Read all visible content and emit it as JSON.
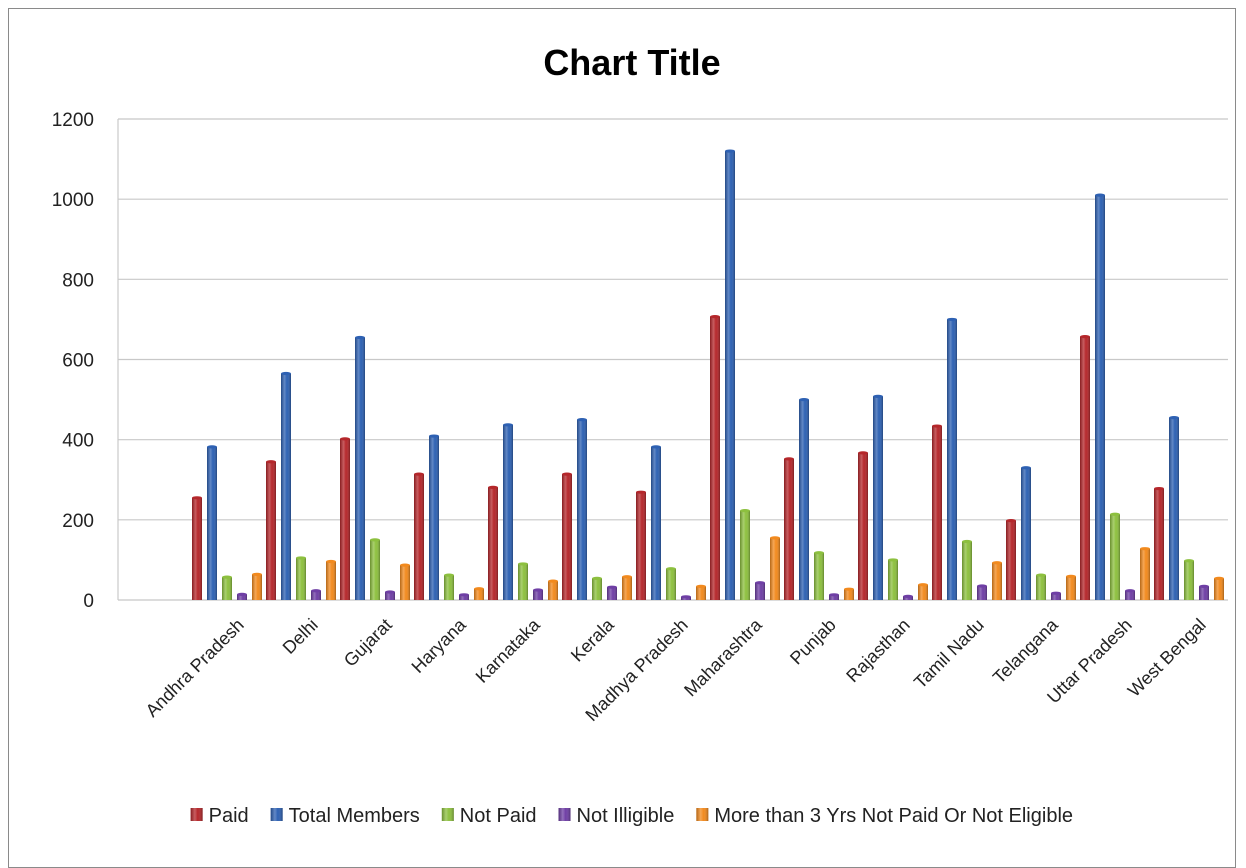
{
  "chart_data": {
    "type": "bar",
    "title": "Chart Title",
    "xlabel": "",
    "ylabel": "",
    "ylim": [
      0,
      1200
    ],
    "yticks": [
      0,
      200,
      400,
      600,
      800,
      1000,
      1200
    ],
    "grid": true,
    "legend_position": "bottom",
    "categories": [
      "Andhra Pradesh",
      "Delhi",
      "Gujarat",
      "Haryana",
      "Karnataka",
      "Kerala",
      "Madhya Pradesh",
      "Maharashtra",
      "Punjab",
      "Rajasthan",
      "Tamil Nadu",
      "Telangana",
      "Uttar Pradesh",
      "West Bengal"
    ],
    "series": [
      {
        "name": "Paid",
        "color": "#b5272b",
        "values": [
          255,
          345,
          402,
          314,
          281,
          314,
          269,
          707,
          352,
          367,
          434,
          198,
          657,
          278
        ]
      },
      {
        "name": "Total Members",
        "color": "#2e61b3",
        "values": [
          382,
          565,
          655,
          409,
          437,
          450,
          382,
          1120,
          500,
          508,
          700,
          330,
          1010,
          455
        ]
      },
      {
        "name": "Not Paid",
        "color": "#8dc03f",
        "values": [
          57,
          105,
          150,
          62,
          90,
          54,
          78,
          223,
          118,
          100,
          146,
          62,
          214,
          98
        ]
      },
      {
        "name": "Not Illigible",
        "color": "#6f3fa5",
        "values": [
          14,
          23,
          20,
          13,
          25,
          32,
          8,
          43,
          13,
          9,
          35,
          17,
          23,
          34
        ]
      },
      {
        "name": "More than 3 Yrs Not Paid Or Not Eligible",
        "color": "#f28a1e",
        "values": [
          64,
          96,
          87,
          28,
          47,
          58,
          34,
          155,
          27,
          38,
          93,
          59,
          128,
          54
        ]
      }
    ]
  }
}
